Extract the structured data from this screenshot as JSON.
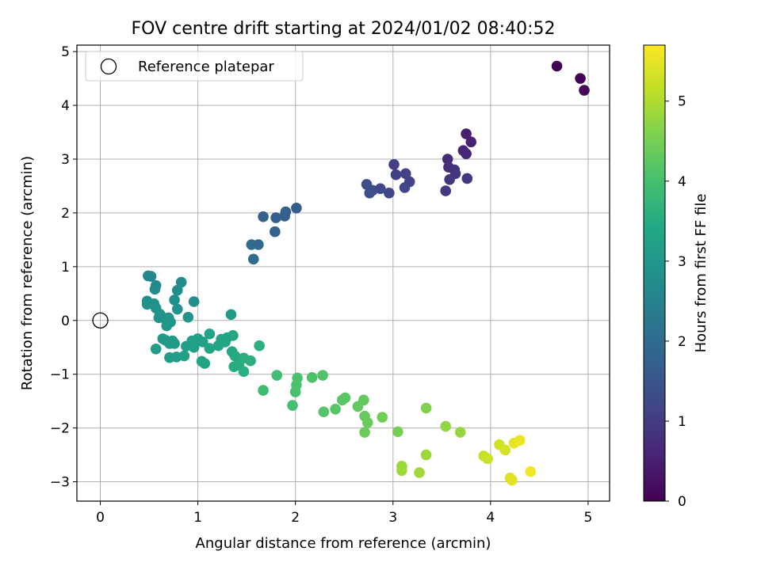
{
  "chart_data": {
    "type": "scatter",
    "title": "FOV centre drift starting at 2024/01/02 08:40:52",
    "xlabel": "Angular distance from reference (arcmin)",
    "ylabel": "Rotation from reference (arcmin)",
    "xlim": [
      -0.24,
      5.22
    ],
    "ylim": [
      -3.36,
      5.12
    ],
    "xticks": [
      0,
      1,
      2,
      3,
      4,
      5
    ],
    "yticks": [
      -3,
      -2,
      -1,
      0,
      1,
      2,
      3,
      4,
      5
    ],
    "grid": true,
    "legend": {
      "position": "top-left",
      "entries": [
        "Reference platepar"
      ]
    },
    "reference_point": {
      "name": "Reference platepar",
      "x": 0,
      "y": 0
    },
    "colorbar": {
      "label": "Hours from first FF file",
      "range": [
        0,
        5.7
      ],
      "ticks": [
        0,
        1,
        2,
        3,
        4,
        5
      ],
      "colormap": "viridis"
    },
    "points": [
      {
        "x": 4.68,
        "y": 4.73,
        "c": 0.0
      },
      {
        "x": 4.92,
        "y": 4.5,
        "c": 0.05
      },
      {
        "x": 4.96,
        "y": 4.28,
        "c": 0.1
      },
      {
        "x": 3.75,
        "y": 3.47,
        "c": 0.5
      },
      {
        "x": 3.8,
        "y": 3.32,
        "c": 0.55
      },
      {
        "x": 3.72,
        "y": 3.16,
        "c": 0.6
      },
      {
        "x": 3.75,
        "y": 3.1,
        "c": 0.65
      },
      {
        "x": 3.56,
        "y": 3.0,
        "c": 0.7
      },
      {
        "x": 3.57,
        "y": 2.85,
        "c": 0.75
      },
      {
        "x": 3.63,
        "y": 2.8,
        "c": 0.8
      },
      {
        "x": 3.64,
        "y": 2.73,
        "c": 0.85
      },
      {
        "x": 3.58,
        "y": 2.62,
        "c": 0.9
      },
      {
        "x": 3.76,
        "y": 2.64,
        "c": 0.9
      },
      {
        "x": 3.54,
        "y": 2.41,
        "c": 0.95
      },
      {
        "x": 3.01,
        "y": 2.9,
        "c": 1.05
      },
      {
        "x": 3.03,
        "y": 2.71,
        "c": 1.1
      },
      {
        "x": 3.13,
        "y": 2.73,
        "c": 1.12
      },
      {
        "x": 3.17,
        "y": 2.58,
        "c": 1.15
      },
      {
        "x": 3.12,
        "y": 2.47,
        "c": 1.18
      },
      {
        "x": 2.96,
        "y": 2.37,
        "c": 1.2
      },
      {
        "x": 2.87,
        "y": 2.45,
        "c": 1.25
      },
      {
        "x": 2.79,
        "y": 2.42,
        "c": 1.3
      },
      {
        "x": 2.73,
        "y": 2.53,
        "c": 1.35
      },
      {
        "x": 2.76,
        "y": 2.37,
        "c": 1.4
      },
      {
        "x": 2.01,
        "y": 2.09,
        "c": 1.65
      },
      {
        "x": 1.9,
        "y": 2.02,
        "c": 1.7
      },
      {
        "x": 1.89,
        "y": 1.94,
        "c": 1.72
      },
      {
        "x": 1.8,
        "y": 1.91,
        "c": 1.75
      },
      {
        "x": 1.67,
        "y": 1.93,
        "c": 1.78
      },
      {
        "x": 1.79,
        "y": 1.65,
        "c": 1.8
      },
      {
        "x": 1.55,
        "y": 1.41,
        "c": 1.95
      },
      {
        "x": 1.62,
        "y": 1.41,
        "c": 1.97
      },
      {
        "x": 1.57,
        "y": 1.14,
        "c": 2.0
      },
      {
        "x": 0.49,
        "y": 0.83,
        "c": 2.6
      },
      {
        "x": 0.52,
        "y": 0.82,
        "c": 2.62
      },
      {
        "x": 0.57,
        "y": 0.65,
        "c": 2.7
      },
      {
        "x": 0.56,
        "y": 0.58,
        "c": 2.72
      },
      {
        "x": 0.48,
        "y": 0.36,
        "c": 2.8
      },
      {
        "x": 0.48,
        "y": 0.3,
        "c": 2.85
      },
      {
        "x": 0.55,
        "y": 0.31,
        "c": 2.85
      },
      {
        "x": 0.57,
        "y": 0.23,
        "c": 2.88
      },
      {
        "x": 0.61,
        "y": 0.12,
        "c": 2.9
      },
      {
        "x": 0.6,
        "y": 0.05,
        "c": 2.92
      },
      {
        "x": 0.66,
        "y": 0.04,
        "c": 2.95
      },
      {
        "x": 0.68,
        "y": -0.1,
        "c": 2.97
      },
      {
        "x": 0.7,
        "y": 0.05,
        "c": 3.0
      },
      {
        "x": 0.72,
        "y": -0.03,
        "c": 3.0
      },
      {
        "x": 0.83,
        "y": 0.71,
        "c": 2.75
      },
      {
        "x": 0.79,
        "y": 0.56,
        "c": 2.78
      },
      {
        "x": 0.76,
        "y": 0.38,
        "c": 2.82
      },
      {
        "x": 0.79,
        "y": 0.21,
        "c": 2.87
      },
      {
        "x": 0.9,
        "y": 0.06,
        "c": 2.95
      },
      {
        "x": 0.96,
        "y": 0.35,
        "c": 2.8
      },
      {
        "x": 0.64,
        "y": -0.34,
        "c": 3.05
      },
      {
        "x": 0.67,
        "y": -0.37,
        "c": 3.05
      },
      {
        "x": 0.74,
        "y": -0.38,
        "c": 3.08
      },
      {
        "x": 0.76,
        "y": -0.43,
        "c": 3.1
      },
      {
        "x": 0.71,
        "y": -0.43,
        "c": 3.1
      },
      {
        "x": 0.57,
        "y": -0.53,
        "c": 3.12
      },
      {
        "x": 0.71,
        "y": -0.69,
        "c": 3.15
      },
      {
        "x": 0.78,
        "y": -0.68,
        "c": 3.17
      },
      {
        "x": 0.86,
        "y": -0.66,
        "c": 3.2
      },
      {
        "x": 0.88,
        "y": -0.48,
        "c": 3.2
      },
      {
        "x": 0.94,
        "y": -0.38,
        "c": 3.22
      },
      {
        "x": 0.96,
        "y": -0.5,
        "c": 3.23
      },
      {
        "x": 1.0,
        "y": -0.34,
        "c": 3.25
      },
      {
        "x": 1.05,
        "y": -0.4,
        "c": 3.25
      },
      {
        "x": 1.04,
        "y": -0.76,
        "c": 3.28
      },
      {
        "x": 1.07,
        "y": -0.8,
        "c": 3.3
      },
      {
        "x": 1.12,
        "y": -0.25,
        "c": 3.3
      },
      {
        "x": 1.12,
        "y": -0.52,
        "c": 3.32
      },
      {
        "x": 1.21,
        "y": -0.47,
        "c": 3.33
      },
      {
        "x": 1.24,
        "y": -0.35,
        "c": 3.35
      },
      {
        "x": 1.28,
        "y": -0.4,
        "c": 3.37
      },
      {
        "x": 1.3,
        "y": -0.32,
        "c": 3.38
      },
      {
        "x": 1.34,
        "y": 0.11,
        "c": 3.1
      },
      {
        "x": 1.36,
        "y": -0.28,
        "c": 3.4
      },
      {
        "x": 1.35,
        "y": -0.58,
        "c": 3.42
      },
      {
        "x": 1.38,
        "y": -0.66,
        "c": 3.45
      },
      {
        "x": 1.43,
        "y": -0.73,
        "c": 3.47
      },
      {
        "x": 1.37,
        "y": -0.86,
        "c": 3.5
      },
      {
        "x": 1.42,
        "y": -0.83,
        "c": 3.52
      },
      {
        "x": 1.47,
        "y": -0.95,
        "c": 3.55
      },
      {
        "x": 1.47,
        "y": -0.7,
        "c": 3.55
      },
      {
        "x": 1.54,
        "y": -0.75,
        "c": 3.58
      },
      {
        "x": 1.63,
        "y": -0.47,
        "c": 3.6
      },
      {
        "x": 1.67,
        "y": -1.3,
        "c": 3.9
      },
      {
        "x": 1.81,
        "y": -1.02,
        "c": 3.95
      },
      {
        "x": 1.97,
        "y": -1.58,
        "c": 4.0
      },
      {
        "x": 2.0,
        "y": -1.33,
        "c": 4.02
      },
      {
        "x": 2.01,
        "y": -1.2,
        "c": 4.05
      },
      {
        "x": 2.02,
        "y": -1.07,
        "c": 4.07
      },
      {
        "x": 2.17,
        "y": -1.06,
        "c": 4.1
      },
      {
        "x": 2.28,
        "y": -1.02,
        "c": 4.12
      },
      {
        "x": 2.29,
        "y": -1.7,
        "c": 4.15
      },
      {
        "x": 2.41,
        "y": -1.65,
        "c": 4.18
      },
      {
        "x": 2.48,
        "y": -1.48,
        "c": 4.2
      },
      {
        "x": 2.51,
        "y": -1.44,
        "c": 4.22
      },
      {
        "x": 2.64,
        "y": -1.6,
        "c": 4.3
      },
      {
        "x": 2.7,
        "y": -1.48,
        "c": 4.32
      },
      {
        "x": 2.71,
        "y": -1.78,
        "c": 4.35
      },
      {
        "x": 2.74,
        "y": -1.9,
        "c": 4.38
      },
      {
        "x": 2.71,
        "y": -2.08,
        "c": 4.4
      },
      {
        "x": 2.89,
        "y": -1.8,
        "c": 4.45
      },
      {
        "x": 3.05,
        "y": -2.07,
        "c": 4.5
      },
      {
        "x": 3.09,
        "y": -2.71,
        "c": 4.85
      },
      {
        "x": 3.09,
        "y": -2.79,
        "c": 4.87
      },
      {
        "x": 3.27,
        "y": -2.83,
        "c": 4.9
      },
      {
        "x": 3.34,
        "y": -1.63,
        "c": 4.6
      },
      {
        "x": 3.34,
        "y": -2.5,
        "c": 4.85
      },
      {
        "x": 3.54,
        "y": -1.97,
        "c": 4.75
      },
      {
        "x": 3.69,
        "y": -2.08,
        "c": 4.8
      },
      {
        "x": 3.93,
        "y": -2.52,
        "c": 5.2
      },
      {
        "x": 3.97,
        "y": -2.57,
        "c": 5.25
      },
      {
        "x": 4.09,
        "y": -2.31,
        "c": 5.3
      },
      {
        "x": 4.15,
        "y": -2.41,
        "c": 5.35
      },
      {
        "x": 4.2,
        "y": -2.93,
        "c": 5.4
      },
      {
        "x": 4.22,
        "y": -2.97,
        "c": 5.45
      },
      {
        "x": 4.24,
        "y": -2.28,
        "c": 5.5
      },
      {
        "x": 4.3,
        "y": -2.23,
        "c": 5.55
      },
      {
        "x": 4.41,
        "y": -2.81,
        "c": 5.6
      }
    ]
  }
}
